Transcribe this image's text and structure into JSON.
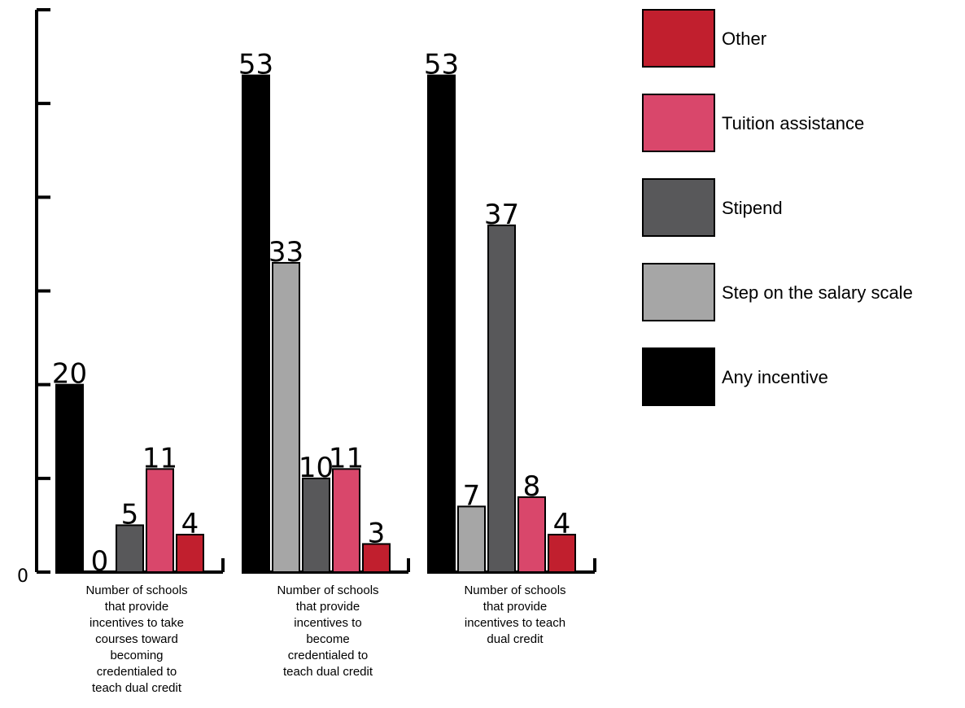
{
  "chart_data": {
    "type": "bar",
    "categories": [
      "Number of schools that provide incentives to take courses toward becoming credentialed to teach dual credit",
      "Number of schools that provide incentives to become credentialed to teach dual credit",
      "Number of schools that provide incentives to teach dual credit"
    ],
    "category_lines": [
      [
        "Number of schools",
        "that provide",
        "incentives to take",
        "courses toward",
        "becoming",
        "credentialed to",
        "teach dual credit"
      ],
      [
        "Number of schools",
        "that provide",
        "incentives to",
        "become",
        "credentialed to",
        "teach dual credit"
      ],
      [
        "Number of schools",
        "that provide",
        "incentives to teach",
        "dual credit"
      ]
    ],
    "series": [
      {
        "name": "Any incentive",
        "color": "#000000",
        "values": [
          20,
          53,
          53
        ]
      },
      {
        "name": "Step on the salary scale",
        "color": "#a6a6a6",
        "values": [
          0,
          33,
          7
        ]
      },
      {
        "name": "Stipend",
        "color": "#58585a",
        "values": [
          5,
          10,
          37
        ]
      },
      {
        "name": "Tuition assistance",
        "color": "#d9476b",
        "values": [
          11,
          11,
          8
        ]
      },
      {
        "name": "Other",
        "color": "#c11f2e",
        "values": [
          4,
          3,
          4
        ]
      }
    ],
    "legend_order": [
      "Other",
      "Tuition assistance",
      "Stipend",
      "Step on the salary scale",
      "Any incentive"
    ],
    "ylim": [
      0,
      60
    ],
    "y_tick_step": 10,
    "y_tick_labels": [
      "0"
    ],
    "grid": false,
    "legend_position": "right",
    "title": "",
    "xlabel": "",
    "ylabel": ""
  }
}
